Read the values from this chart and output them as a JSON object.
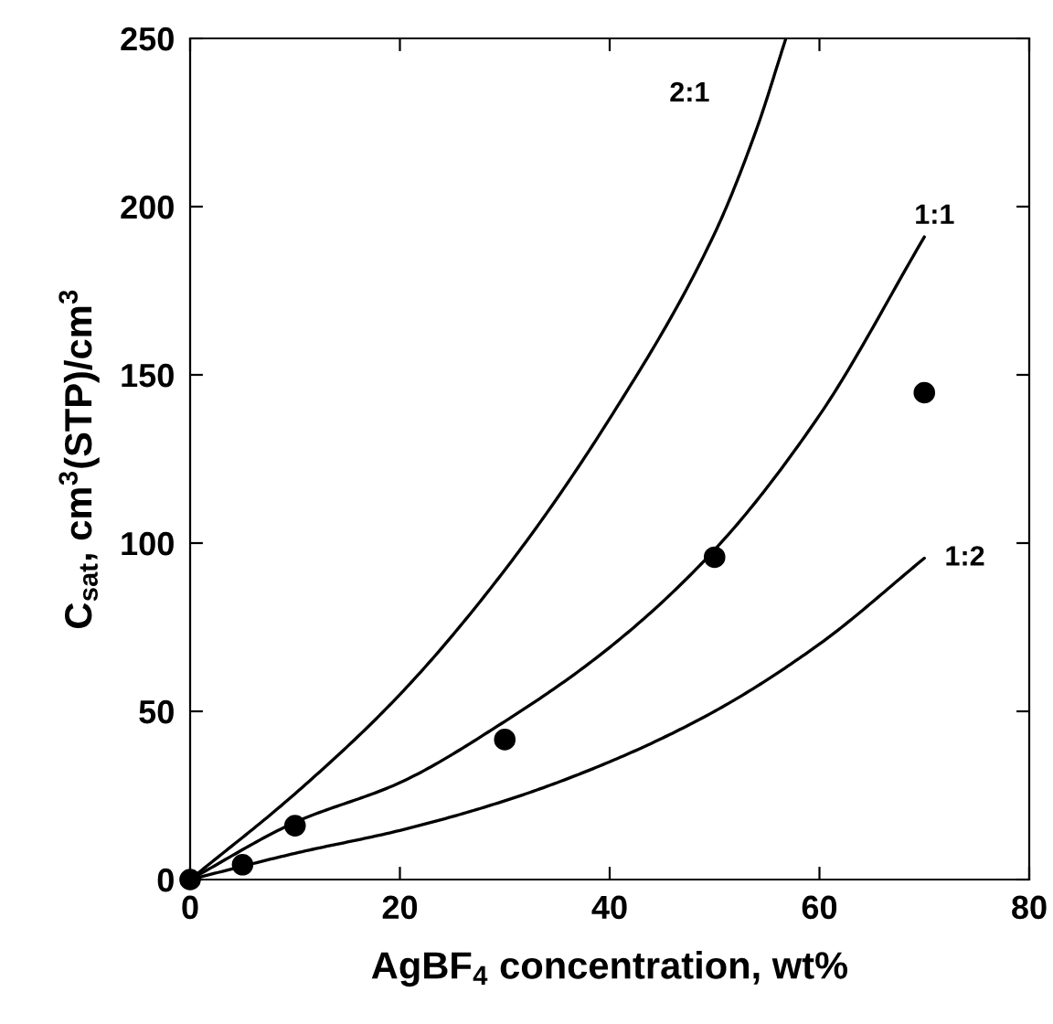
{
  "chart_data": {
    "type": "line",
    "xlabel": "AgBF$_{4}$ concentration, wt%",
    "ylabel": "C$_{sat}$, cm$^{3}$(STP)/cm$^{3}$",
    "xlim": [
      0,
      80
    ],
    "ylim": [
      0,
      250
    ],
    "xticks": [
      0,
      20,
      40,
      60,
      80
    ],
    "yticks": [
      0,
      50,
      100,
      150,
      200,
      250
    ],
    "grid": false,
    "legend": "right",
    "line_style": "solid",
    "marker": "none",
    "series": [
      {
        "name": "2:1",
        "color": "#000000",
        "x": [
          0,
          10,
          20,
          30,
          40,
          50,
          54,
          56.8
        ],
        "values": [
          0,
          25.5,
          55,
          92,
          137,
          192,
          223,
          250
        ]
      },
      {
        "name": "1:1",
        "color": "#000000",
        "x": [
          0,
          10,
          20,
          30,
          40,
          50,
          60,
          70
        ],
        "values": [
          0,
          17,
          28.8,
          47,
          69,
          98,
          138,
          191
        ]
      },
      {
        "name": "1:2",
        "color": "#000000",
        "x": [
          0,
          10,
          20,
          30,
          40,
          50,
          60,
          70
        ],
        "values": [
          0,
          7.8,
          14.6,
          23.4,
          35,
          50,
          70,
          95.5
        ]
      },
      {
        "type": "scatter",
        "marker": "circle",
        "color": "#000000",
        "x": [
          0,
          5,
          10,
          30,
          50,
          70
        ],
        "values": [
          0,
          4.4,
          16,
          41.6,
          95.8,
          144.7
        ]
      }
    ]
  }
}
